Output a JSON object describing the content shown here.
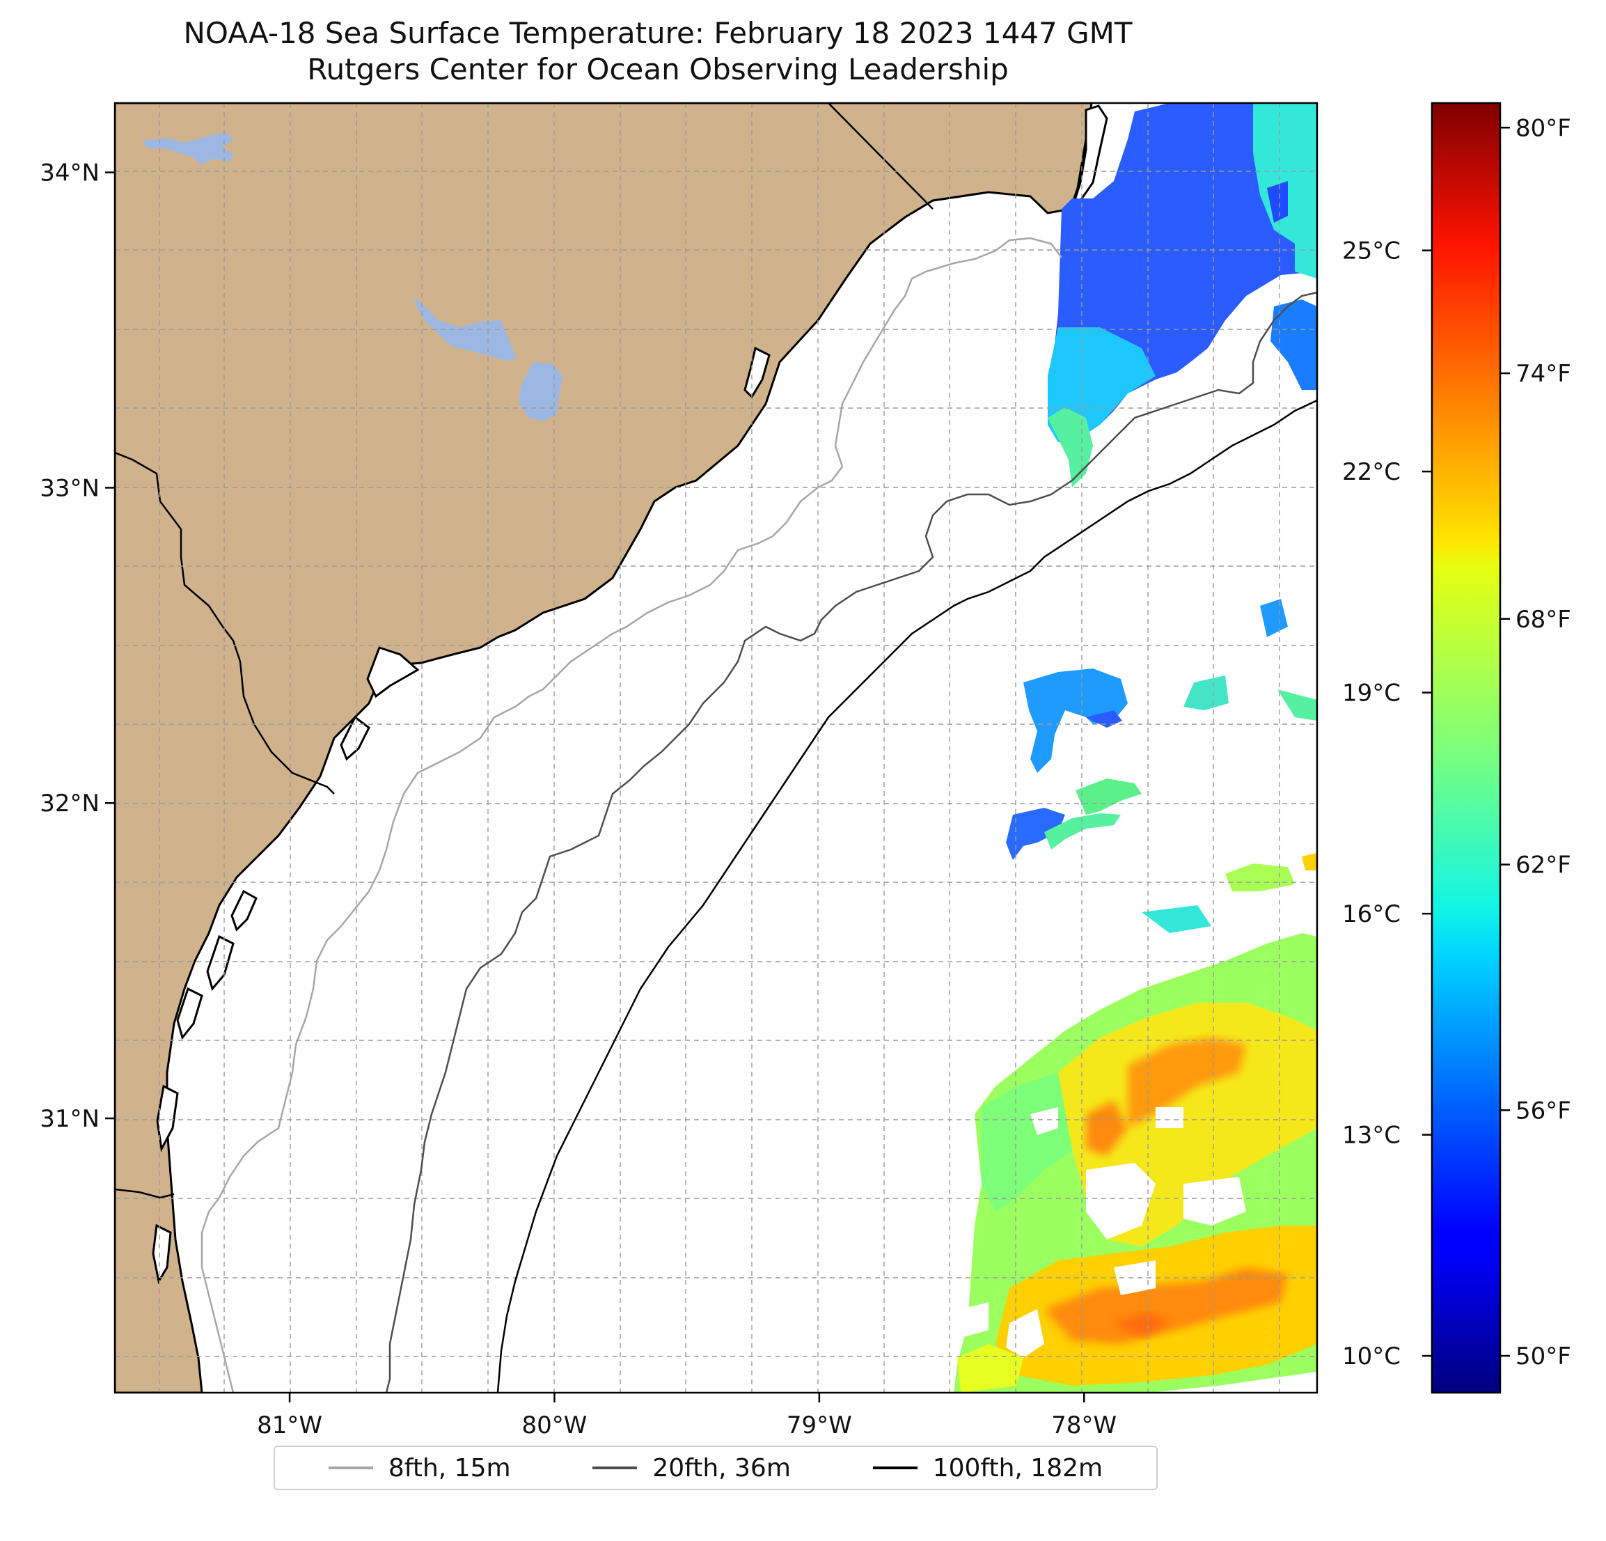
{
  "title": {
    "line1": "NOAA-18 Sea Surface Temperature: February 18 2023 1447 GMT",
    "line2": "Rutgers Center for Ocean Observing Leadership"
  },
  "map": {
    "lon_range": [
      -81.66,
      -77.12
    ],
    "lat_range": [
      30.13,
      34.22
    ],
    "lon_ticks": [
      {
        "value": -81,
        "label": "81°W"
      },
      {
        "value": -80,
        "label": "80°W"
      },
      {
        "value": -79,
        "label": "79°W"
      },
      {
        "value": -78,
        "label": "78°W"
      }
    ],
    "lat_ticks": [
      {
        "value": 34,
        "label": "34°N"
      },
      {
        "value": 33,
        "label": "33°N"
      },
      {
        "value": 32,
        "label": "32°N"
      },
      {
        "value": 31,
        "label": "31°N"
      }
    ],
    "grid": true,
    "land_color": "#d0b38c",
    "lake_color": "#9cb8e2",
    "ocean_color": "#ffffff"
  },
  "colorbar": {
    "colormap": "jet",
    "range_c": [
      9.5,
      27.0
    ],
    "celsius_ticks": [
      {
        "value": 10,
        "label": "10°C"
      },
      {
        "value": 13,
        "label": "13°C"
      },
      {
        "value": 16,
        "label": "16°C"
      },
      {
        "value": 19,
        "label": "19°C"
      },
      {
        "value": 22,
        "label": "22°C"
      },
      {
        "value": 25,
        "label": "25°C"
      }
    ],
    "fahrenheit_ticks": [
      {
        "value": 50,
        "label": "50°F"
      },
      {
        "value": 56,
        "label": "56°F"
      },
      {
        "value": 62,
        "label": "62°F"
      },
      {
        "value": 68,
        "label": "68°F"
      },
      {
        "value": 74,
        "label": "74°F"
      },
      {
        "value": 80,
        "label": "80°F"
      }
    ]
  },
  "legend": {
    "placement": "bottom-center",
    "items": [
      {
        "label": "8fth, 15m",
        "color": "#a6a6a6"
      },
      {
        "label": "20fth, 36m",
        "color": "#4d4d4d"
      },
      {
        "label": "100fth, 182m",
        "color": "#000000"
      }
    ]
  }
}
